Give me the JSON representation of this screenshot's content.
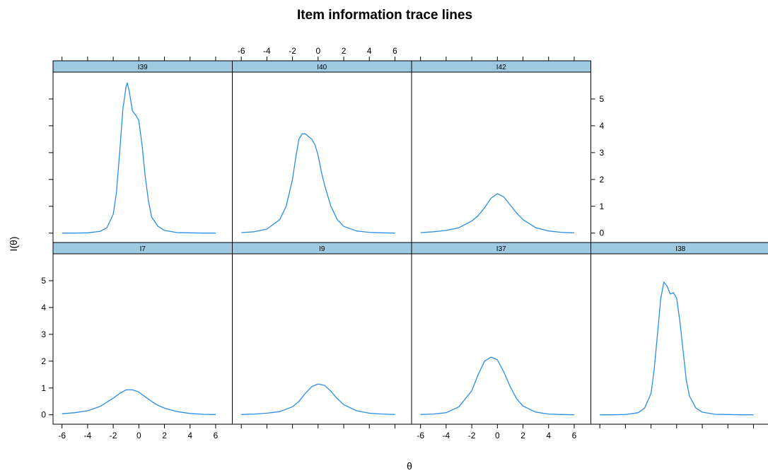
{
  "title": "Item information trace lines",
  "xlabel": "θ",
  "ylabel": "I(θ)",
  "colors": {
    "line": "#2b8ee6",
    "strip": "#9ecae1",
    "frame": "#000000",
    "background": "#ffffff"
  },
  "chart_data": {
    "type": "line",
    "title": "Item information trace lines",
    "xlabel": "θ",
    "ylabel": "I(θ)",
    "xlim": [
      -6.7,
      7.3
    ],
    "ylim": [
      -0.35,
      6.0
    ],
    "x_ticks": [
      -6,
      -4,
      -2,
      0,
      2,
      4,
      6
    ],
    "y_ticks": [
      0,
      1,
      2,
      3,
      4,
      5
    ],
    "layout": "trellis 4 columns x 2 rows",
    "grid": false,
    "panels": [
      {
        "name": "I39",
        "x": [
          -6,
          -5,
          -4,
          -3,
          -2.5,
          -2,
          -1.75,
          -1.5,
          -1.25,
          -1,
          -0.9,
          -0.75,
          -0.5,
          -0.25,
          0,
          0.25,
          0.5,
          0.75,
          1,
          1.5,
          2,
          3,
          4,
          5,
          6
        ],
        "values": [
          0.0,
          0.0,
          0.01,
          0.07,
          0.2,
          0.7,
          1.5,
          3.0,
          4.6,
          5.45,
          5.6,
          5.3,
          4.55,
          4.4,
          4.2,
          3.3,
          2.1,
          1.2,
          0.6,
          0.25,
          0.1,
          0.02,
          0.01,
          0.0,
          0.0
        ]
      },
      {
        "name": "I40",
        "x": [
          -6,
          -5,
          -4,
          -3,
          -2.5,
          -2,
          -1.75,
          -1.5,
          -1.25,
          -1,
          -0.75,
          -0.5,
          -0.25,
          0,
          0.25,
          0.5,
          1,
          1.5,
          2,
          3,
          4,
          5,
          6
        ],
        "values": [
          0.02,
          0.05,
          0.15,
          0.5,
          1.0,
          2.0,
          2.8,
          3.5,
          3.7,
          3.7,
          3.6,
          3.5,
          3.3,
          2.9,
          2.3,
          1.8,
          1.0,
          0.5,
          0.25,
          0.08,
          0.03,
          0.01,
          0.0
        ]
      },
      {
        "name": "I42",
        "x": [
          -6,
          -5,
          -4,
          -3,
          -2,
          -1.5,
          -1,
          -0.5,
          0,
          0.5,
          1,
          1.5,
          2,
          3,
          4,
          5,
          6
        ],
        "values": [
          0.02,
          0.05,
          0.1,
          0.2,
          0.45,
          0.65,
          0.95,
          1.3,
          1.47,
          1.35,
          1.05,
          0.75,
          0.5,
          0.2,
          0.08,
          0.03,
          0.01
        ]
      },
      {
        "name": "I7",
        "x": [
          -6,
          -5,
          -4,
          -3,
          -2,
          -1.5,
          -1,
          -0.5,
          0,
          0.5,
          1,
          1.5,
          2,
          3,
          4,
          5,
          6
        ],
        "values": [
          0.04,
          0.08,
          0.15,
          0.32,
          0.62,
          0.8,
          0.93,
          0.93,
          0.85,
          0.67,
          0.5,
          0.35,
          0.25,
          0.12,
          0.05,
          0.02,
          0.01
        ]
      },
      {
        "name": "I9",
        "x": [
          -6,
          -5,
          -4,
          -3,
          -2,
          -1.5,
          -1,
          -0.5,
          0,
          0.5,
          1,
          1.5,
          2,
          3,
          4,
          5,
          6
        ],
        "values": [
          0.01,
          0.03,
          0.06,
          0.12,
          0.3,
          0.5,
          0.8,
          1.05,
          1.15,
          1.1,
          0.88,
          0.6,
          0.38,
          0.15,
          0.06,
          0.03,
          0.01
        ]
      },
      {
        "name": "I37",
        "x": [
          -6,
          -5,
          -4,
          -3,
          -2,
          -1.5,
          -1,
          -0.5,
          0,
          0.5,
          1,
          1.5,
          2,
          3,
          4,
          5,
          6
        ],
        "values": [
          0.01,
          0.03,
          0.08,
          0.3,
          0.9,
          1.5,
          2.0,
          2.15,
          2.05,
          1.6,
          1.05,
          0.6,
          0.33,
          0.1,
          0.03,
          0.01,
          0.0
        ]
      },
      {
        "name": "I38",
        "x": [
          -6,
          -5,
          -4,
          -3,
          -2.5,
          -2,
          -1.75,
          -1.5,
          -1.25,
          -1,
          -0.75,
          -0.5,
          -0.25,
          0,
          0.25,
          0.5,
          0.75,
          1,
          1.5,
          2,
          3,
          4,
          5,
          6
        ],
        "values": [
          0.0,
          0.0,
          0.01,
          0.08,
          0.25,
          0.8,
          1.7,
          3.0,
          4.3,
          4.95,
          4.8,
          4.5,
          4.55,
          4.35,
          3.5,
          2.4,
          1.3,
          0.7,
          0.25,
          0.1,
          0.02,
          0.01,
          0.0,
          0.0
        ]
      }
    ]
  }
}
